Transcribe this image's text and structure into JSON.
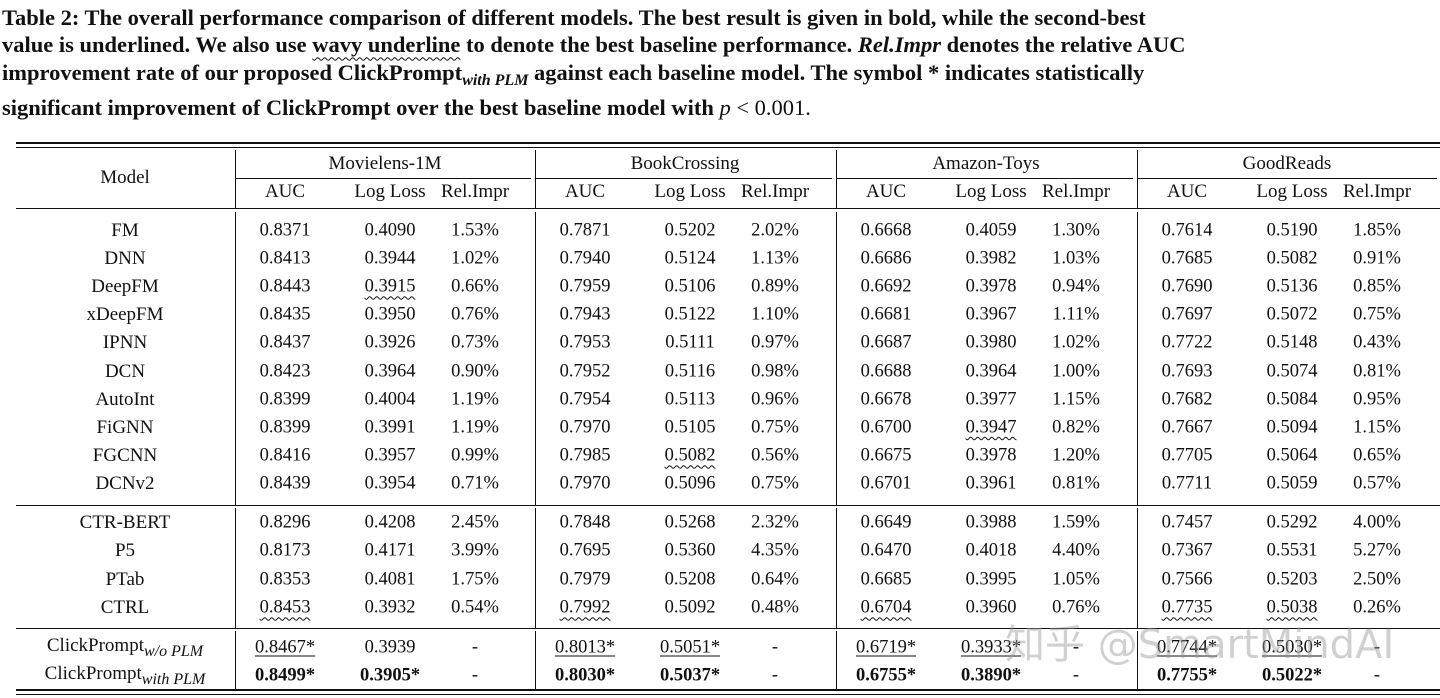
{
  "caption": {
    "p1": "Table 2: The overall performance comparison of different models. The best result is given in bold, while the second-best",
    "p2a": "value is underlined. We also use ",
    "p2b": "wavy underline",
    "p2c": " to denote the best baseline performance. ",
    "p2d": "Rel.Impr",
    "p2e": " denotes the relative AUC",
    "p3a": "improvement rate of our proposed ClickPrompt",
    "p3b": "with PLM",
    "p3c": " against each baseline model. The symbol * indicates statistically",
    "p4a": "significant improvement of ClickPrompt over the best baseline model with ",
    "p4b": "p",
    "p4c": " < 0.001."
  },
  "header": {
    "model": "Model",
    "datasets": [
      "Movielens-1M",
      "BookCrossing",
      "Amazon-Toys",
      "GoodReads"
    ],
    "metrics": [
      "AUC",
      "Log Loss",
      "Rel.Impr"
    ]
  },
  "groups": [
    [
      {
        "model": "FM",
        "cells": [
          [
            "0.8371"
          ],
          [
            "0.4090"
          ],
          [
            "1.53%"
          ],
          [
            "0.7871"
          ],
          [
            "0.5202"
          ],
          [
            "2.02%"
          ],
          [
            "0.6668"
          ],
          [
            "0.4059"
          ],
          [
            "1.30%"
          ],
          [
            "0.7614"
          ],
          [
            "0.5190"
          ],
          [
            "1.85%"
          ]
        ]
      },
      {
        "model": "DNN",
        "cells": [
          [
            "0.8413"
          ],
          [
            "0.3944"
          ],
          [
            "1.02%"
          ],
          [
            "0.7940"
          ],
          [
            "0.5124"
          ],
          [
            "1.13%"
          ],
          [
            "0.6686"
          ],
          [
            "0.3982"
          ],
          [
            "1.03%"
          ],
          [
            "0.7685"
          ],
          [
            "0.5082"
          ],
          [
            "0.91%"
          ]
        ]
      },
      {
        "model": "DeepFM",
        "cells": [
          [
            "0.8443"
          ],
          [
            "0.3915",
            "w"
          ],
          [
            "0.66%"
          ],
          [
            "0.7959"
          ],
          [
            "0.5106"
          ],
          [
            "0.89%"
          ],
          [
            "0.6692"
          ],
          [
            "0.3978"
          ],
          [
            "0.94%"
          ],
          [
            "0.7690"
          ],
          [
            "0.5136"
          ],
          [
            "0.85%"
          ]
        ]
      },
      {
        "model": "xDeepFM",
        "cells": [
          [
            "0.8435"
          ],
          [
            "0.3950"
          ],
          [
            "0.76%"
          ],
          [
            "0.7943"
          ],
          [
            "0.5122"
          ],
          [
            "1.10%"
          ],
          [
            "0.6681"
          ],
          [
            "0.3967"
          ],
          [
            "1.11%"
          ],
          [
            "0.7697"
          ],
          [
            "0.5072"
          ],
          [
            "0.75%"
          ]
        ]
      },
      {
        "model": "IPNN",
        "cells": [
          [
            "0.8437"
          ],
          [
            "0.3926"
          ],
          [
            "0.73%"
          ],
          [
            "0.7953"
          ],
          [
            "0.5111"
          ],
          [
            "0.97%"
          ],
          [
            "0.6687"
          ],
          [
            "0.3980"
          ],
          [
            "1.02%"
          ],
          [
            "0.7722"
          ],
          [
            "0.5148"
          ],
          [
            "0.43%"
          ]
        ]
      },
      {
        "model": "DCN",
        "cells": [
          [
            "0.8423"
          ],
          [
            "0.3964"
          ],
          [
            "0.90%"
          ],
          [
            "0.7952"
          ],
          [
            "0.5116"
          ],
          [
            "0.98%"
          ],
          [
            "0.6688"
          ],
          [
            "0.3964"
          ],
          [
            "1.00%"
          ],
          [
            "0.7693"
          ],
          [
            "0.5074"
          ],
          [
            "0.81%"
          ]
        ]
      },
      {
        "model": "AutoInt",
        "cells": [
          [
            "0.8399"
          ],
          [
            "0.4004"
          ],
          [
            "1.19%"
          ],
          [
            "0.7954"
          ],
          [
            "0.5113"
          ],
          [
            "0.96%"
          ],
          [
            "0.6678"
          ],
          [
            "0.3977"
          ],
          [
            "1.15%"
          ],
          [
            "0.7682"
          ],
          [
            "0.5084"
          ],
          [
            "0.95%"
          ]
        ]
      },
      {
        "model": "FiGNN",
        "cells": [
          [
            "0.8399"
          ],
          [
            "0.3991"
          ],
          [
            "1.19%"
          ],
          [
            "0.7970"
          ],
          [
            "0.5105"
          ],
          [
            "0.75%"
          ],
          [
            "0.6700"
          ],
          [
            "0.3947",
            "w"
          ],
          [
            "0.82%"
          ],
          [
            "0.7667"
          ],
          [
            "0.5094"
          ],
          [
            "1.15%"
          ]
        ]
      },
      {
        "model": "FGCNN",
        "cells": [
          [
            "0.8416"
          ],
          [
            "0.3957"
          ],
          [
            "0.99%"
          ],
          [
            "0.7985"
          ],
          [
            "0.5082",
            "w"
          ],
          [
            "0.56%"
          ],
          [
            "0.6675"
          ],
          [
            "0.3978"
          ],
          [
            "1.20%"
          ],
          [
            "0.7705"
          ],
          [
            "0.5064"
          ],
          [
            "0.65%"
          ]
        ]
      },
      {
        "model": "DCNv2",
        "cells": [
          [
            "0.8439"
          ],
          [
            "0.3954"
          ],
          [
            "0.71%"
          ],
          [
            "0.7970"
          ],
          [
            "0.5096"
          ],
          [
            "0.75%"
          ],
          [
            "0.6701"
          ],
          [
            "0.3961"
          ],
          [
            "0.81%"
          ],
          [
            "0.7711"
          ],
          [
            "0.5059"
          ],
          [
            "0.57%"
          ]
        ]
      }
    ],
    [
      {
        "model": "CTR-BERT",
        "cells": [
          [
            "0.8296"
          ],
          [
            "0.4208"
          ],
          [
            "2.45%"
          ],
          [
            "0.7848"
          ],
          [
            "0.5268"
          ],
          [
            "2.32%"
          ],
          [
            "0.6649"
          ],
          [
            "0.3988"
          ],
          [
            "1.59%"
          ],
          [
            "0.7457"
          ],
          [
            "0.5292"
          ],
          [
            "4.00%"
          ]
        ]
      },
      {
        "model": "P5",
        "cells": [
          [
            "0.8173"
          ],
          [
            "0.4171"
          ],
          [
            "3.99%"
          ],
          [
            "0.7695"
          ],
          [
            "0.5360"
          ],
          [
            "4.35%"
          ],
          [
            "0.6470"
          ],
          [
            "0.4018"
          ],
          [
            "4.40%"
          ],
          [
            "0.7367"
          ],
          [
            "0.5531"
          ],
          [
            "5.27%"
          ]
        ]
      },
      {
        "model": "PTab",
        "cells": [
          [
            "0.8353"
          ],
          [
            "0.4081"
          ],
          [
            "1.75%"
          ],
          [
            "0.7979"
          ],
          [
            "0.5208"
          ],
          [
            "0.64%"
          ],
          [
            "0.6685"
          ],
          [
            "0.3995"
          ],
          [
            "1.05%"
          ],
          [
            "0.7566"
          ],
          [
            "0.5203"
          ],
          [
            "2.50%"
          ]
        ]
      },
      {
        "model": "CTRL",
        "cells": [
          [
            "0.8453",
            "w"
          ],
          [
            "0.3932"
          ],
          [
            "0.54%"
          ],
          [
            "0.7992",
            "w"
          ],
          [
            "0.5092"
          ],
          [
            "0.48%"
          ],
          [
            "0.6704",
            "w"
          ],
          [
            "0.3960"
          ],
          [
            "0.76%"
          ],
          [
            "0.7735",
            "w"
          ],
          [
            "0.5038",
            "w"
          ],
          [
            "0.26%"
          ]
        ]
      }
    ],
    [
      {
        "model": "ClickPrompt",
        "sub": "w/o PLM",
        "cells": [
          [
            "0.8467*",
            "u"
          ],
          [
            "0.3939"
          ],
          [
            "-"
          ],
          [
            "0.8013*",
            "u"
          ],
          [
            "0.5051*",
            "u"
          ],
          [
            "-"
          ],
          [
            "0.6719*",
            "u"
          ],
          [
            "0.3933*",
            "u"
          ],
          [
            "-"
          ],
          [
            "0.7744*",
            "u"
          ],
          [
            "0.5030*",
            "u"
          ],
          [
            "-"
          ]
        ]
      },
      {
        "model": "ClickPrompt",
        "sub": "with PLM",
        "cells": [
          [
            "0.8499*",
            "b"
          ],
          [
            "0.3905*",
            "b"
          ],
          [
            "-"
          ],
          [
            "0.8030*",
            "b"
          ],
          [
            "0.5037*",
            "b"
          ],
          [
            "-"
          ],
          [
            "0.6755*",
            "b"
          ],
          [
            "0.3890*",
            "b"
          ],
          [
            "-"
          ],
          [
            "0.7755*",
            "b"
          ],
          [
            "0.5022*",
            "b"
          ],
          [
            "-"
          ]
        ]
      }
    ]
  ],
  "watermark": "知乎 @SmartMindAI"
}
